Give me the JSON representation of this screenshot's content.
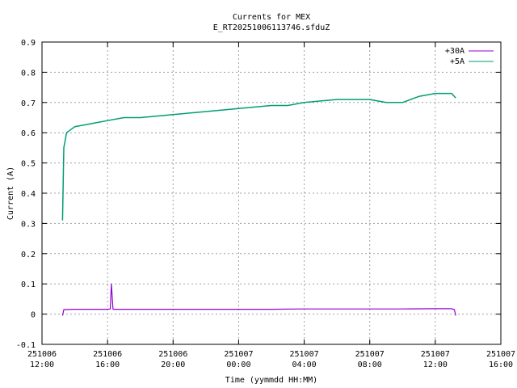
{
  "chart_data": {
    "type": "line",
    "title": "Currents for MEX",
    "subtitle": "E_RT20251006113746.sfduZ",
    "xlabel": "Time (yymmdd HH:MM)",
    "ylabel": "Current (A)",
    "xlim_hours": [
      12,
      40
    ],
    "ylim": [
      -0.1,
      0.9
    ],
    "y_ticks": [
      "-0.1",
      "0",
      "0.1",
      "0.2",
      "0.3",
      "0.4",
      "0.5",
      "0.6",
      "0.7",
      "0.8",
      "0.9"
    ],
    "x_ticks": [
      {
        "date": "251006",
        "time": "12:00"
      },
      {
        "date": "251006",
        "time": "16:00"
      },
      {
        "date": "251006",
        "time": "20:00"
      },
      {
        "date": "251007",
        "time": "00:00"
      },
      {
        "date": "251007",
        "time": "04:00"
      },
      {
        "date": "251007",
        "time": "08:00"
      },
      {
        "date": "251007",
        "time": "12:00"
      },
      {
        "date": "251007",
        "time": "16:00"
      }
    ],
    "grid": true,
    "legend_position": "top-right",
    "series": [
      {
        "name": "+30A",
        "color": "#9400d3",
        "x_time": [
          "251006 13:15",
          "251006 13:20",
          "251006 14:00",
          "251006 15:00",
          "251006 16:00",
          "251006 16:10",
          "251006 16:14",
          "251006 16:20",
          "251006 18:00",
          "251006 20:00",
          "251006 22:00",
          "251007 00:00",
          "251007 02:00",
          "251007 04:00",
          "251007 06:00",
          "251007 08:00",
          "251007 10:00",
          "251007 12:00",
          "251007 13:00",
          "251007 13:10",
          "251007 13:15"
        ],
        "y": [
          -0.005,
          0.015,
          0.016,
          0.016,
          0.016,
          0.017,
          0.1,
          0.016,
          0.016,
          0.016,
          0.016,
          0.016,
          0.016,
          0.017,
          0.017,
          0.017,
          0.017,
          0.018,
          0.018,
          0.015,
          -0.005
        ]
      },
      {
        "name": "+5A",
        "color": "#009e73",
        "x_time": [
          "251006 13:15",
          "251006 13:20",
          "251006 13:30",
          "251006 14:00",
          "251006 15:00",
          "251006 16:00",
          "251006 17:00",
          "251006 18:00",
          "251006 19:00",
          "251006 20:00",
          "251006 21:00",
          "251006 22:00",
          "251006 23:00",
          "251007 00:00",
          "251007 01:00",
          "251007 02:00",
          "251007 03:00",
          "251007 04:00",
          "251007 05:00",
          "251007 06:00",
          "251007 07:00",
          "251007 08:00",
          "251007 09:00",
          "251007 10:00",
          "251007 11:00",
          "251007 12:00",
          "251007 13:00",
          "251007 13:15"
        ],
        "y": [
          0.31,
          0.55,
          0.6,
          0.62,
          0.63,
          0.64,
          0.65,
          0.65,
          0.655,
          0.66,
          0.665,
          0.67,
          0.675,
          0.68,
          0.685,
          0.69,
          0.69,
          0.7,
          0.705,
          0.71,
          0.71,
          0.71,
          0.7,
          0.7,
          0.72,
          0.73,
          0.73,
          0.715
        ]
      }
    ]
  }
}
